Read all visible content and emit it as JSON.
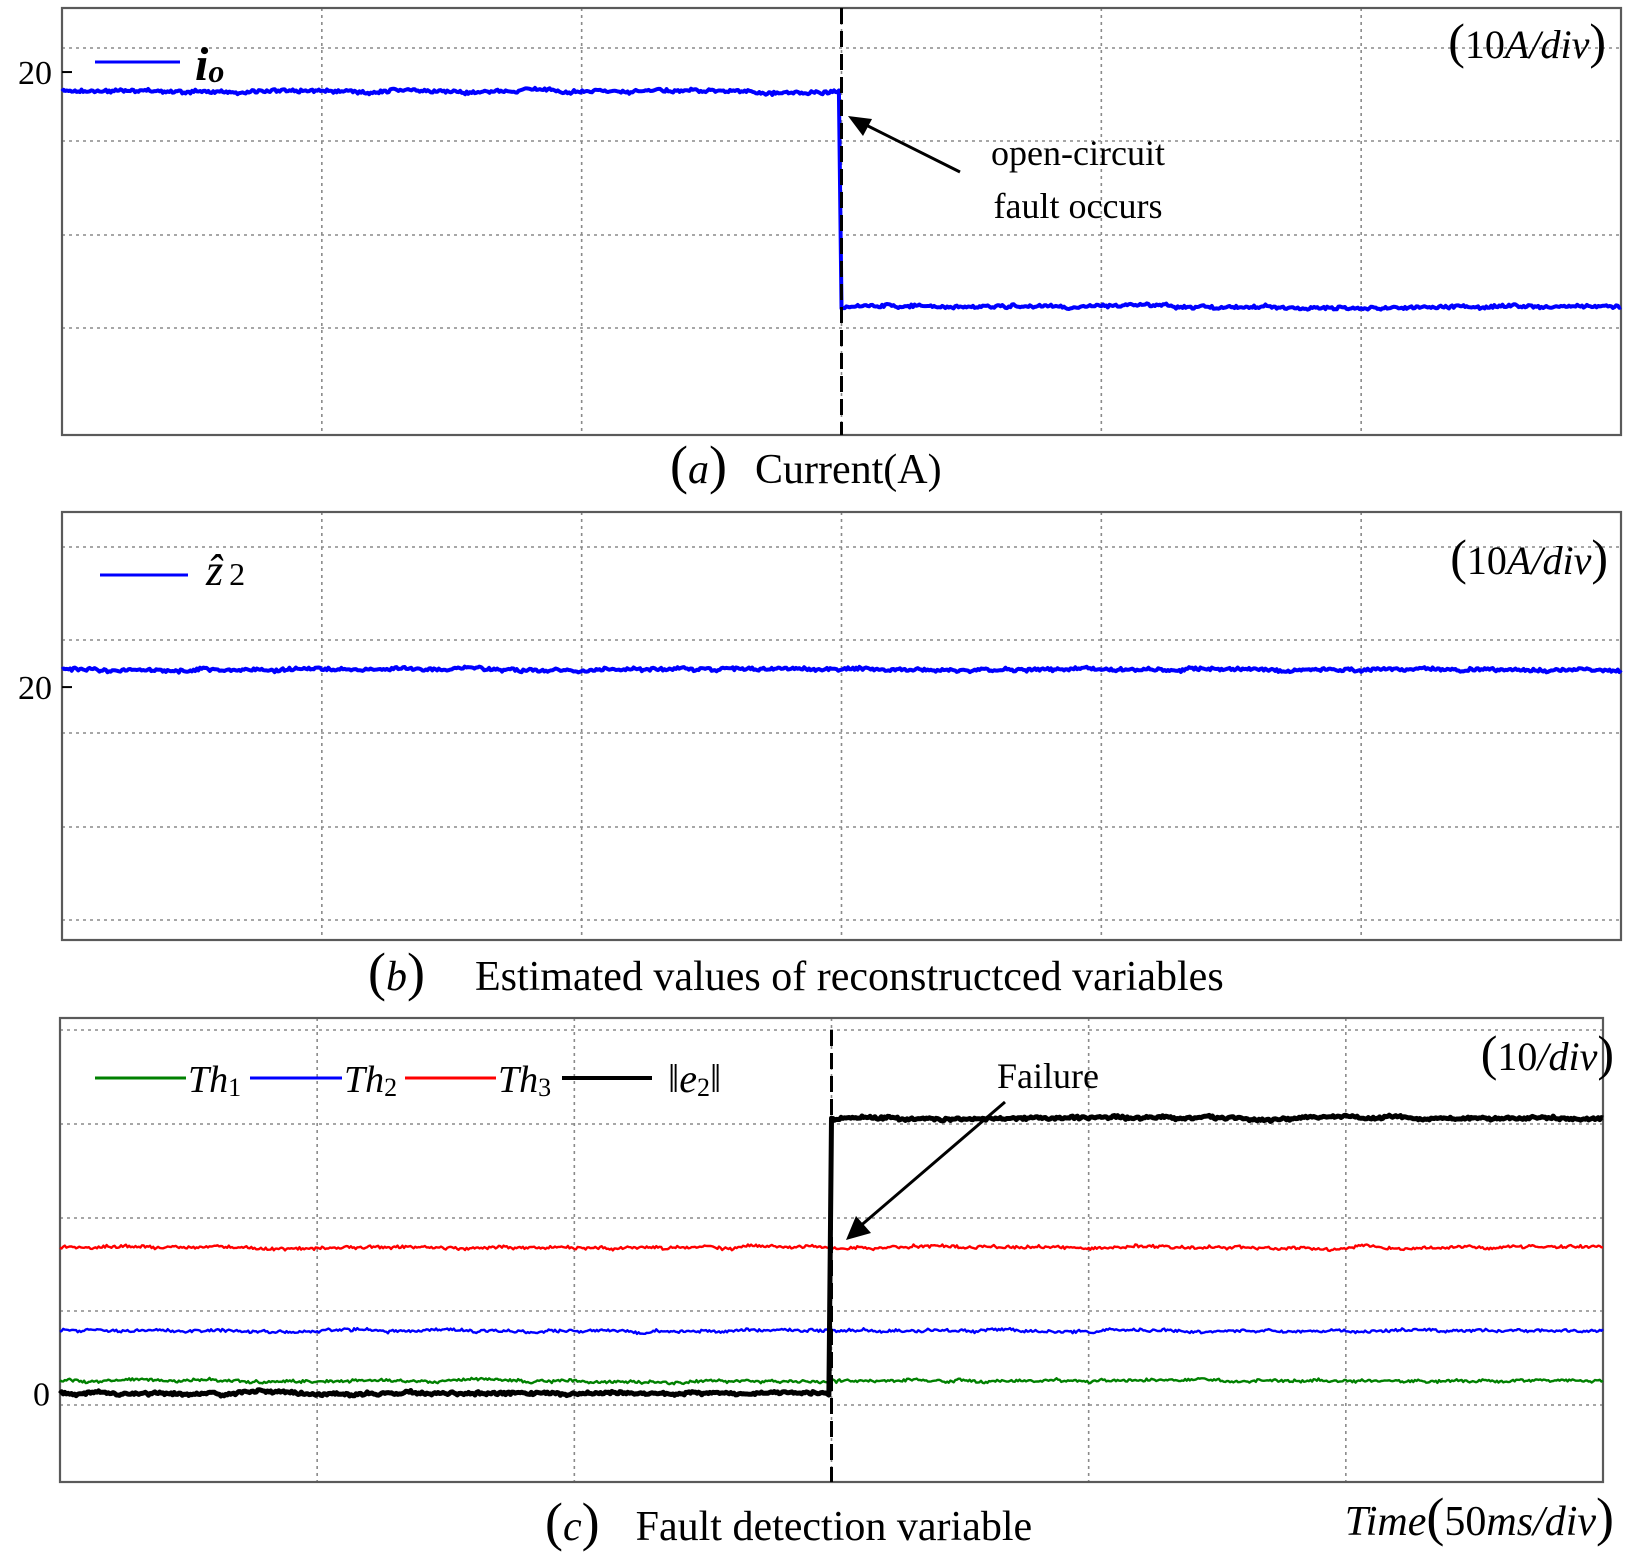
{
  "chart_data": [
    {
      "id": "a",
      "type": "line",
      "panel_label": "a",
      "title": "Current(A)",
      "scale_label": "(10A/div)",
      "scale_value": "10",
      "scale_unit": "A/div",
      "xdivs": 6,
      "ylim": [
        -14,
        26
      ],
      "yticks": [
        20
      ],
      "legend": [
        {
          "name": "i",
          "sub": "o",
          "color": "#0000ff"
        }
      ],
      "series": [
        {
          "name": "i_o",
          "color": "#0000ff",
          "x": [
            0,
            2.99,
            3,
            6
          ],
          "y": [
            18.2,
            18.2,
            -2.0,
            -2.0
          ]
        }
      ],
      "event_x": 3.0,
      "annotation": {
        "lines": [
          "open-circuit",
          "fault occurs"
        ]
      }
    },
    {
      "id": "b",
      "type": "line",
      "panel_label": "b",
      "title": "Estimated values of reconstructced variables",
      "scale_label": "(10A/div)",
      "scale_value": "10",
      "scale_unit": "A/div",
      "xdivs": 6,
      "ylim": [
        -6,
        38
      ],
      "yticks": [
        20
      ],
      "legend": [
        {
          "name": "ẑ",
          "sub": "2",
          "color": "#0000ff"
        }
      ],
      "series": [
        {
          "name": "ẑ_2",
          "color": "#0000ff",
          "x": [
            0,
            6
          ],
          "y": [
            21.8,
            21.8
          ]
        }
      ]
    },
    {
      "id": "c",
      "type": "line",
      "panel_label": "c",
      "title": "Fault detection variable",
      "scale_label": "(10/div)",
      "scale_value": "10",
      "scale_unit": "/div",
      "xlabel": "Time",
      "xscale_value": "50",
      "xscale_unit": "ms/div",
      "xdivs": 6,
      "ylim": [
        -8.5,
        36
      ],
      "yticks": [
        0
      ],
      "legend": [
        {
          "name": "Th",
          "sub": "1",
          "color": "#008000"
        },
        {
          "name": "Th",
          "sub": "2",
          "color": "#0000ff"
        },
        {
          "name": "Th",
          "sub": "3",
          "color": "#ff0000"
        },
        {
          "name": "‖e",
          "sub": "2",
          "tail": "‖",
          "color": "#000000"
        }
      ],
      "series": [
        {
          "name": "Th1",
          "color": "#008000",
          "x": [
            0,
            6
          ],
          "y": [
            1.2,
            1.2
          ]
        },
        {
          "name": "Th2",
          "color": "#0000ff",
          "x": [
            0,
            6
          ],
          "y": [
            6.0,
            6.0
          ]
        },
        {
          "name": "Th3",
          "color": "#ff0000",
          "x": [
            0,
            6
          ],
          "y": [
            14.0,
            14.0
          ]
        },
        {
          "name": "e2",
          "color": "#000000",
          "x": [
            0,
            2.99,
            3,
            6
          ],
          "y": [
            0,
            0,
            26.4,
            26.4
          ]
        }
      ],
      "event_x": 3.0,
      "annotation": {
        "lines": [
          "Failure"
        ]
      }
    }
  ]
}
